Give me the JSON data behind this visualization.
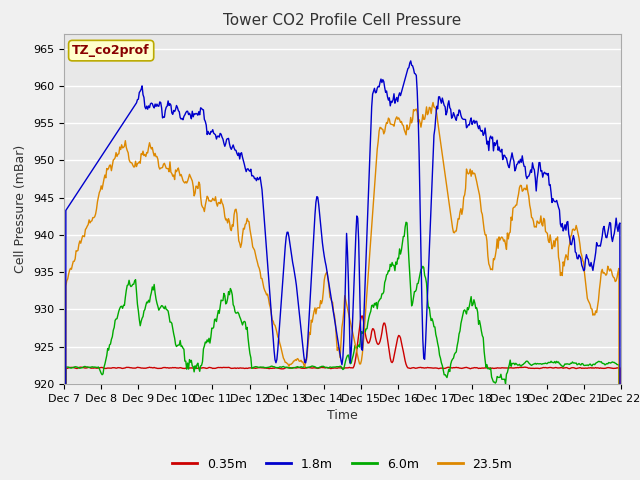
{
  "title": "Tower CO2 Profile Cell Pressure",
  "ylabel": "Cell Pressure (mBar)",
  "xlabel": "Time",
  "ylim": [
    920,
    967
  ],
  "yticks": [
    920,
    925,
    930,
    935,
    940,
    945,
    950,
    955,
    960,
    965
  ],
  "xtick_labels": [
    "Dec 7",
    "Dec 8",
    "Dec 9",
    "Dec 10",
    "Dec 11",
    "Dec 12",
    "Dec 13",
    "Dec 14",
    "Dec 15",
    "Dec 16",
    "Dec 17",
    "Dec 18",
    "Dec 19",
    "Dec 20",
    "Dec 21",
    "Dec 22"
  ],
  "legend_label": "TZ_co2prof",
  "legend_box_facecolor": "#ffffcc",
  "legend_box_edgecolor": "#bbaa00",
  "legend_text_color": "#880000",
  "series_colors": [
    "#cc0000",
    "#0000cc",
    "#00aa00",
    "#dd8800"
  ],
  "series_labels": [
    "0.35m",
    "1.8m",
    "6.0m",
    "23.5m"
  ],
  "fig_facecolor": "#f0f0f0",
  "plot_facecolor": "#e8e8e8",
  "grid_color": "#ffffff",
  "linewidth": 1.0,
  "title_fontsize": 11,
  "tick_fontsize": 8,
  "axis_label_fontsize": 9
}
